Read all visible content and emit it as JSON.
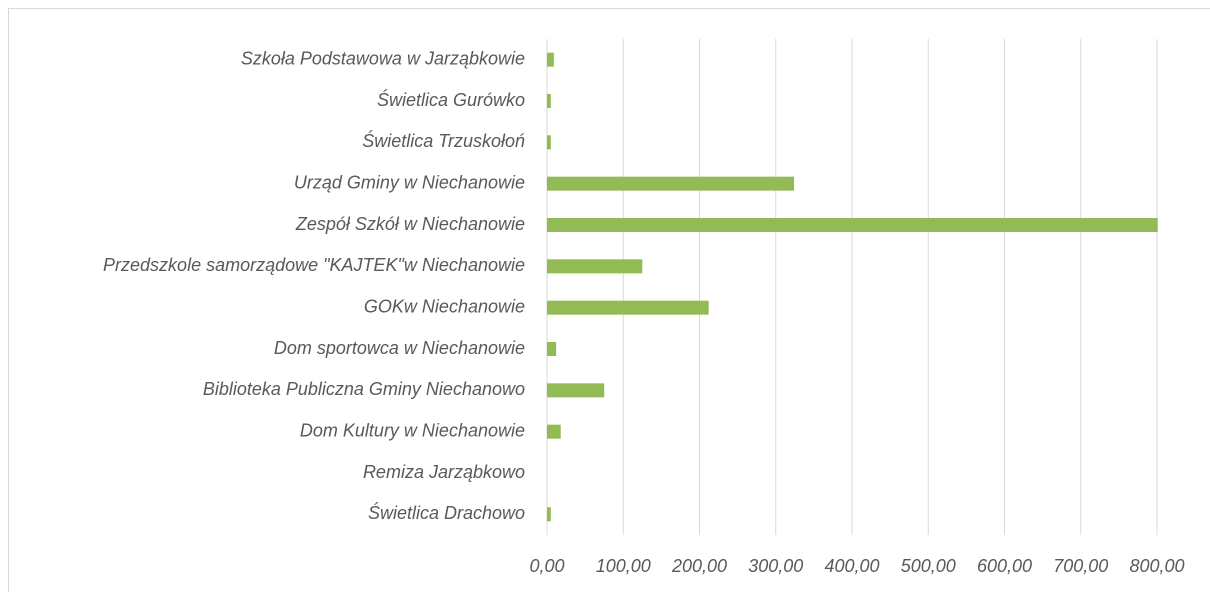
{
  "chart_data": {
    "type": "bar",
    "orientation": "horizontal",
    "categories": [
      "Szkoła Podstawowa w Jarząbkowie",
      "Świetlica Gurówko",
      "Świetlica Trzuskołoń",
      "Urząd Gminy w Niechanowie",
      "Zespół Szkół w Niechanowie",
      "Przedszkole samorządowe \"KAJTEK\"w Niechanowie",
      "GOKw Niechanowie",
      "Dom sportowca w Niechanowie",
      "Biblioteka Publiczna Gminy Niechanowo",
      "Dom Kultury w Niechanowie",
      "Remiza Jarząbkowo",
      "Świetlica Drachowo"
    ],
    "values": [
      9,
      5,
      5,
      324,
      801,
      125,
      212,
      12,
      75,
      18,
      0,
      5
    ],
    "color": "#92bb55",
    "xlim": [
      0,
      800
    ],
    "xticks": [
      {
        "value": 0,
        "label": "0,00"
      },
      {
        "value": 100,
        "label": "100,00"
      },
      {
        "value": 200,
        "label": "200,00"
      },
      {
        "value": 300,
        "label": "300,00"
      },
      {
        "value": 400,
        "label": "400,00"
      },
      {
        "value": 500,
        "label": "500,00"
      },
      {
        "value": 600,
        "label": "600,00"
      },
      {
        "value": 700,
        "label": "700,00"
      },
      {
        "value": 800,
        "label": "800,00"
      }
    ],
    "grid": true
  }
}
